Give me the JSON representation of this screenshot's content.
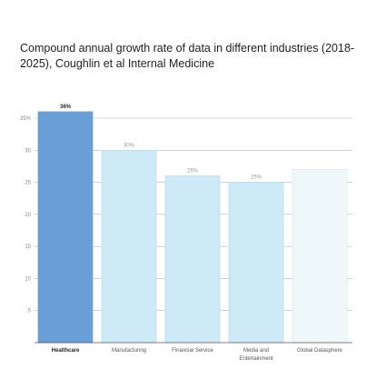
{
  "title": "Compound annual growth rate of data in different industries (2018-2025), Coughlin et al Internal Medicine",
  "colors": {
    "highlight": "#6a9ed6",
    "bar": "#cdeaf6",
    "bar_edge": "#b9dcec",
    "last_bar": "#eef7fa",
    "last_edge": "#d4e8ee",
    "grid": "#b8b8b8",
    "axis": "#555555"
  },
  "chart_data": {
    "type": "bar",
    "title": "Compound annual growth rate of data in different industries (2018-2025), Coughlin et al Internal Medicine",
    "categories": [
      "Healthcare",
      "Manufacturing",
      "Financial Service",
      "Media and Entertainment",
      "Global Datasphere"
    ],
    "values": [
      36,
      30,
      26,
      25,
      27
    ],
    "value_labels": [
      "36%",
      "30%",
      "26%",
      "25%",
      ""
    ],
    "highlight_index": 0,
    "ylim": [
      0,
      35
    ],
    "yticks": [
      5,
      10,
      15,
      20,
      25,
      30,
      35
    ],
    "ytick_labels": [
      "5",
      "10",
      "15",
      "20",
      "25",
      "30",
      "35%"
    ],
    "grid": true,
    "xlabel": "",
    "ylabel": ""
  }
}
